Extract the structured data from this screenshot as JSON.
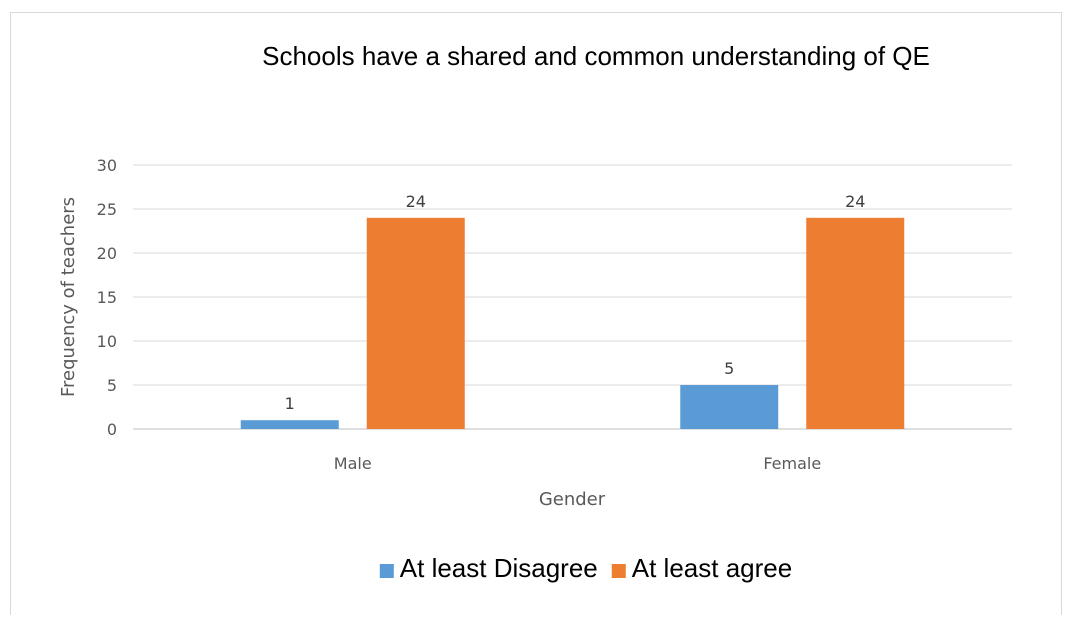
{
  "chart_data": {
    "type": "bar",
    "title": "Schools have a shared and common understanding of QE",
    "xlabel": "Gender",
    "ylabel": "Frequency  of teachers",
    "categories": [
      "Male",
      "Female"
    ],
    "series": [
      {
        "name": "At least Disagree",
        "values": [
          1,
          5
        ],
        "color": "#5b9bd5"
      },
      {
        "name": "At least agree",
        "values": [
          24,
          24
        ],
        "color": "#ed7d31"
      }
    ],
    "ylim": [
      0,
      30
    ],
    "yticks": [
      "0",
      "5",
      "10",
      "15",
      "20",
      "25",
      "30"
    ],
    "grid": true,
    "legend": "bottom",
    "data_labels": true
  }
}
